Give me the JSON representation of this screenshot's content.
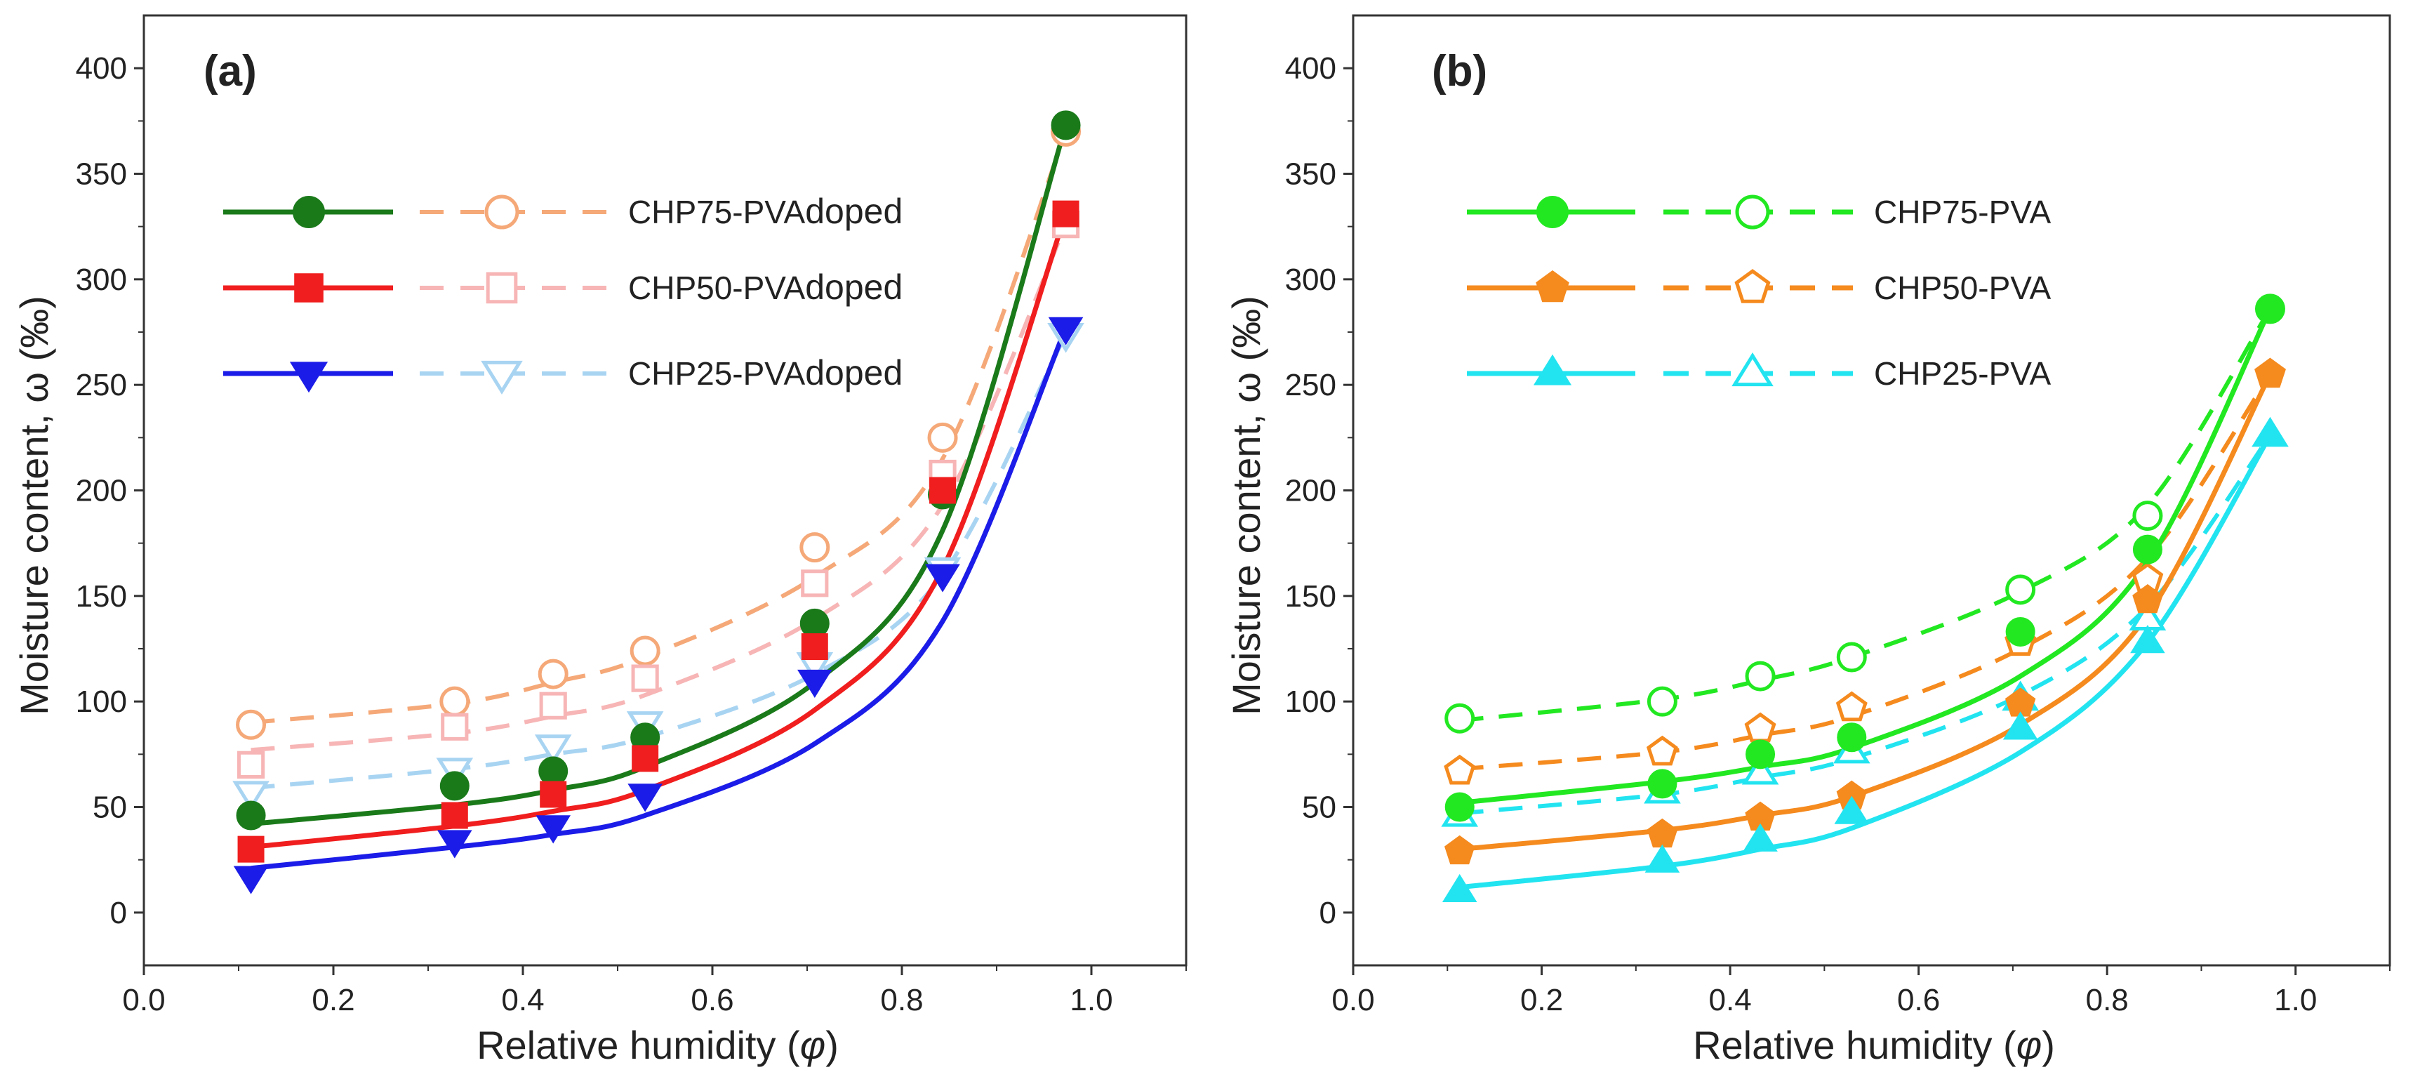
{
  "colors": {
    "CHP75_doped_solid": "#1a7a1a",
    "CHP75_doped_dashed": "#f5a878",
    "CHP50_doped_solid": "#f01e1e",
    "CHP50_doped_dashed": "#f7b5b5",
    "CHP25_doped_solid": "#1c1ce8",
    "CHP25_doped_dashed": "#a8d4f2",
    "CHP75_solid": "#22e822",
    "CHP75_dashed": "#22e822",
    "CHP50_solid": "#f58a1e",
    "CHP50_dashed": "#f58a1e",
    "CHP25_solid": "#22e4f0",
    "CHP25_dashed": "#22e4f0"
  },
  "chart_data": [
    {
      "type": "scatter",
      "panel_label": "(a)",
      "xlabel": "Relative humidity (φ)",
      "xlabel_main": "Relative humidity (",
      "xlabel_symbol": "φ",
      "xlabel_close": ")",
      "ylabel": "Moisture content, ω (‰)",
      "xlim": [
        0.0,
        1.1
      ],
      "ylim": [
        -25,
        425
      ],
      "xticks": [
        "0.0",
        "0.2",
        "0.4",
        "0.6",
        "0.8",
        "1.0"
      ],
      "yticks": [
        "0",
        "50",
        "100",
        "150",
        "200",
        "250",
        "300",
        "350",
        "400"
      ],
      "grid": false,
      "legend": "top-left",
      "x": [
        0.113,
        0.328,
        0.432,
        0.529,
        0.708,
        0.843,
        0.973
      ],
      "series": [
        {
          "name": "CHP75-PVAdoped",
          "name_main": "CHP75-PVA",
          "name_suffix": "doped",
          "marker": "circle",
          "solid": [
            46,
            60,
            67,
            83,
            137,
            198,
            373
          ],
          "dashed": [
            89,
            100,
            113,
            124,
            173,
            225,
            370
          ],
          "solid_fit": [
            42,
            51,
            58,
            69,
            109,
            181,
            373
          ],
          "dashed_fit": [
            90,
            99,
            109,
            121,
            159,
            215,
            370
          ]
        },
        {
          "name": "CHP50-PVAdoped",
          "name_main": "CHP50-PVA",
          "name_suffix": "doped",
          "marker": "square",
          "solid": [
            30,
            46,
            56,
            73,
            126,
            200,
            331
          ],
          "dashed": [
            70,
            88,
            98,
            111,
            156,
            208,
            326
          ],
          "solid_fit": [
            31,
            41,
            48,
            58,
            96,
            163,
            331
          ],
          "dashed_fit": [
            77,
            85,
            93,
            103,
            139,
            193,
            326
          ]
        },
        {
          "name": "CHP25-PVAdoped",
          "name_main": "CHP25-PVA",
          "name_suffix": "doped",
          "marker": "triangle-down",
          "solid": [
            17,
            34,
            41,
            56,
            110,
            160,
            277
          ],
          "dashed": [
            57,
            68,
            79,
            90,
            118,
            163,
            274
          ],
          "solid_fit": [
            21,
            31,
            37,
            46,
            80,
            138,
            277
          ],
          "dashed_fit": [
            59,
            68,
            75,
            83,
            113,
            160,
            274
          ]
        }
      ]
    },
    {
      "type": "scatter",
      "panel_label": "(b)",
      "xlabel": "Relative humidity (φ)",
      "xlabel_main": "Relative humidity (",
      "xlabel_symbol": "φ",
      "xlabel_close": ")",
      "ylabel": "Moisture content, ω (‰)",
      "xlim": [
        0.0,
        1.1
      ],
      "ylim": [
        -25,
        425
      ],
      "xticks": [
        "0.0",
        "0.2",
        "0.4",
        "0.6",
        "0.8",
        "1.0"
      ],
      "yticks": [
        "0",
        "50",
        "100",
        "150",
        "200",
        "250",
        "300",
        "350",
        "400"
      ],
      "grid": false,
      "legend": "top-left",
      "x": [
        0.113,
        0.328,
        0.432,
        0.529,
        0.708,
        0.843,
        0.973
      ],
      "series": [
        {
          "name": "CHP75-PVA",
          "marker": "circle",
          "solid": [
            50,
            61,
            75,
            83,
            133,
            172,
            286
          ],
          "dashed": [
            92,
            100,
            112,
            121,
            153,
            188,
            286
          ],
          "solid_fit": [
            52,
            62,
            69,
            78,
            112,
            166,
            286
          ],
          "dashed_fit": [
            91,
            101,
            110,
            121,
            152,
            193,
            286
          ]
        },
        {
          "name": "CHP50-PVA",
          "marker": "pentagon",
          "solid": [
            29,
            37,
            45,
            55,
            99,
            148,
            255
          ],
          "dashed": [
            67,
            76,
            87,
            97,
            128,
            158,
            255
          ],
          "solid_fit": [
            30,
            39,
            46,
            55,
            89,
            141,
            255
          ],
          "dashed_fit": [
            68,
            76,
            84,
            93,
            125,
            168,
            255
          ]
        },
        {
          "name": "CHP25-PVA",
          "marker": "triangle-up",
          "solid": [
            10,
            24,
            34,
            47,
            87,
            128,
            226
          ],
          "dashed": [
            46,
            57,
            66,
            76,
            101,
            139,
            226
          ],
          "solid_fit": [
            12,
            22,
            30,
            40,
            76,
            128,
            226
          ],
          "dashed_fit": [
            47,
            56,
            64,
            73,
            103,
            145,
            226
          ]
        }
      ]
    }
  ]
}
